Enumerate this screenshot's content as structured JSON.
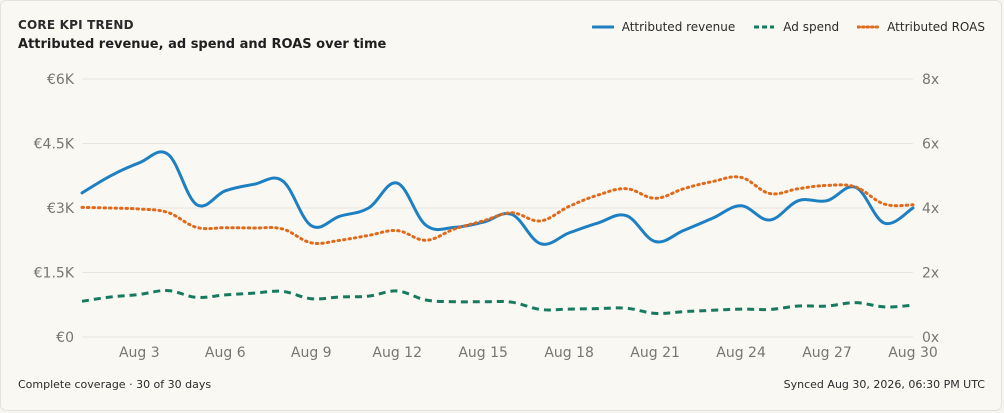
{
  "header": {
    "eyebrow": "CORE KPI TREND",
    "title": "Attributed revenue, ad spend and ROAS over time"
  },
  "legend": [
    {
      "name": "Attributed revenue",
      "color": "#1d80c3",
      "style": "solid"
    },
    {
      "name": "Ad spend",
      "color": "#157a5f",
      "style": "dashed"
    },
    {
      "name": "Attributed ROAS",
      "color": "#e06a1c",
      "style": "dotted"
    }
  ],
  "footer": {
    "coverage": "Complete coverage · 30 of 30 days",
    "synced": "Synced Aug 30, 2026, 06:30 PM UTC"
  },
  "chart_data": {
    "type": "line",
    "x": [
      1,
      2,
      3,
      4,
      5,
      6,
      7,
      8,
      9,
      10,
      11,
      12,
      13,
      14,
      15,
      16,
      17,
      18,
      19,
      20,
      21,
      22,
      23,
      24,
      25,
      26,
      27,
      28,
      29,
      30
    ],
    "x_ticks": [
      {
        "day": 3,
        "label": "Aug 3"
      },
      {
        "day": 6,
        "label": "Aug 6"
      },
      {
        "day": 9,
        "label": "Aug 9"
      },
      {
        "day": 12,
        "label": "Aug 12"
      },
      {
        "day": 15,
        "label": "Aug 15"
      },
      {
        "day": 18,
        "label": "Aug 18"
      },
      {
        "day": 21,
        "label": "Aug 21"
      },
      {
        "day": 24,
        "label": "Aug 24"
      },
      {
        "day": 27,
        "label": "Aug 27"
      },
      {
        "day": 30,
        "label": "Aug 30"
      }
    ],
    "y_left": {
      "ticks": [
        0,
        1500,
        3000,
        4500,
        6000
      ],
      "labels": [
        "€0",
        "€1.5K",
        "€3K",
        "€4.5K",
        "€6K"
      ],
      "range": [
        0,
        6000
      ]
    },
    "y_right": {
      "ticks": [
        0,
        2,
        4,
        6,
        8
      ],
      "labels": [
        "0x",
        "2x",
        "4x",
        "6x",
        "8x"
      ],
      "range": [
        0,
        8
      ]
    },
    "grid": true,
    "series": [
      {
        "name": "Attributed revenue",
        "axis": "left",
        "color": "#1d80c3",
        "style": "solid",
        "values": [
          3350,
          3750,
          4050,
          4250,
          3080,
          3400,
          3550,
          3630,
          2590,
          2810,
          3000,
          3580,
          2600,
          2550,
          2670,
          2850,
          2170,
          2420,
          2650,
          2820,
          2220,
          2480,
          2760,
          3050,
          2720,
          3170,
          3170,
          3480,
          2650,
          3000
        ]
      },
      {
        "name": "Ad spend",
        "axis": "left",
        "color": "#157a5f",
        "style": "dashed",
        "values": [
          830,
          930,
          990,
          1080,
          920,
          980,
          1020,
          1060,
          890,
          930,
          950,
          1070,
          860,
          820,
          820,
          810,
          640,
          650,
          660,
          670,
          550,
          590,
          620,
          650,
          640,
          720,
          720,
          800,
          700,
          740
        ]
      },
      {
        "name": "Attributed ROAS",
        "axis": "right",
        "color": "#e06a1c",
        "style": "dotted",
        "values": [
          4.02,
          4.0,
          3.97,
          3.86,
          3.4,
          3.39,
          3.38,
          3.35,
          2.92,
          3.0,
          3.15,
          3.3,
          3.0,
          3.35,
          3.6,
          3.85,
          3.6,
          4.05,
          4.4,
          4.6,
          4.3,
          4.6,
          4.82,
          4.95,
          4.45,
          4.6,
          4.7,
          4.65,
          4.12,
          4.1
        ]
      }
    ]
  }
}
